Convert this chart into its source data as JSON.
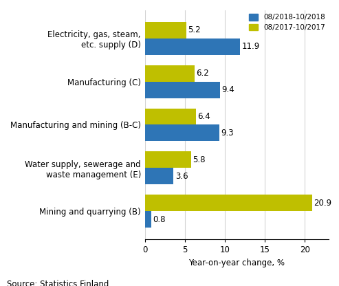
{
  "categories": [
    "Electricity, gas, steam,\netc. supply (D)",
    "Manufacturing (C)",
    "Manufacturing and mining (B-C)",
    "Water supply, sewerage and\nwaste management (E)",
    "Mining and quarrying (B)"
  ],
  "series_2018": [
    11.9,
    9.4,
    9.3,
    3.6,
    0.8
  ],
  "series_2017": [
    5.2,
    6.2,
    6.4,
    5.8,
    20.9
  ],
  "color_2018": "#2E75B6",
  "color_2017": "#BFBF00",
  "legend_2018": "08/2018-10/2018",
  "legend_2017": "08/2017-10/2017",
  "xlabel": "Year-on-year change, %",
  "xlim": [
    0,
    23
  ],
  "xticks": [
    0,
    5,
    10,
    15,
    20
  ],
  "source": "Source: Statistics Finland",
  "bar_height": 0.38,
  "label_fontsize": 8.5,
  "tick_fontsize": 8.5,
  "source_fontsize": 8.5
}
